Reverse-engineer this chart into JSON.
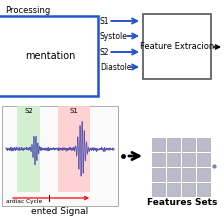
{
  "title_top": "Processing",
  "box1_label": "mentation",
  "box2_label": "Feature Extracion",
  "labels_right": [
    "S1",
    "Systole",
    "S2",
    "Diastole"
  ],
  "signal_labels": [
    "S2",
    "S1"
  ],
  "bottom_label_left": "ented Signal",
  "bottom_label_right": "Features Sets",
  "cardiac_label": "ardiac Cycle",
  "arrow_color": "#2255CC",
  "box1_edge_color": "#2255CC",
  "box2_edge_color": "#555555",
  "signal_color": "#4444AA",
  "s2_highlight": "#CCEECC",
  "s1_highlight": "#FFCCCC",
  "grid_color": "#BBBBCC",
  "grid_edge_color": "#AAAAAA",
  "bg_color": "#FFFFFF",
  "n_grid_rows": 4,
  "n_grid_cols": 4
}
